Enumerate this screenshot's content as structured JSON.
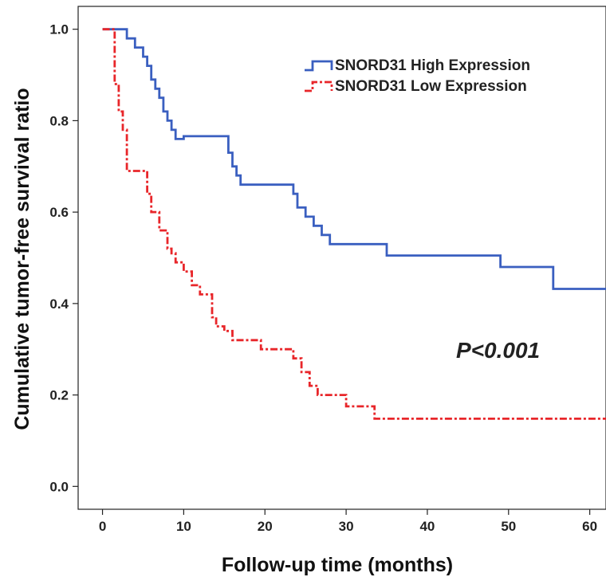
{
  "chart_data": {
    "type": "line",
    "title": "",
    "xlabel": "Follow-up time (months)",
    "ylabel": "Cumulative tumor-free survival ratio",
    "xlim": [
      -3,
      62
    ],
    "ylim": [
      -0.05,
      1.05
    ],
    "x_ticks": [
      "0",
      "10",
      "20",
      "30",
      "40",
      "50",
      "60"
    ],
    "y_ticks": [
      "0.0",
      "0.2",
      "0.4",
      "0.6",
      "0.8",
      "1.0"
    ],
    "x_tick_values": [
      0,
      10,
      20,
      30,
      40,
      50,
      60
    ],
    "y_tick_values": [
      0.0,
      0.2,
      0.4,
      0.6,
      0.8,
      1.0
    ],
    "grid": false,
    "legend_position": "top-right",
    "step": true,
    "annotation": "P<0.001",
    "series": [
      {
        "name": "SNORD31 High Expression",
        "color": "#3a5fc0",
        "dash": "solid",
        "x": [
          0,
          3,
          4,
          5,
          5.5,
          6,
          6.5,
          7,
          7.5,
          8,
          8.5,
          9,
          10,
          15.5,
          16,
          16.5,
          17,
          18,
          23.5,
          24,
          25,
          26,
          27,
          28,
          30,
          35,
          49,
          55.5,
          62
        ],
        "y": [
          1.0,
          0.98,
          0.96,
          0.94,
          0.92,
          0.89,
          0.87,
          0.85,
          0.82,
          0.8,
          0.78,
          0.76,
          0.766,
          0.73,
          0.7,
          0.68,
          0.66,
          0.66,
          0.64,
          0.61,
          0.59,
          0.57,
          0.55,
          0.53,
          0.53,
          0.505,
          0.48,
          0.432,
          0.432
        ]
      },
      {
        "name": "SNORD31 Low Expression",
        "color": "#e8262a",
        "dash": "dashdot",
        "x": [
          0,
          1.5,
          2,
          2.5,
          3,
          5.5,
          6,
          7,
          8,
          8.5,
          9,
          10,
          11,
          12,
          13.5,
          14,
          15,
          16,
          16.5,
          18,
          19.5,
          20.5,
          23.5,
          24.5,
          25.5,
          26.5,
          27.5,
          30,
          33.5,
          62
        ],
        "y": [
          1.0,
          0.88,
          0.82,
          0.78,
          0.69,
          0.64,
          0.6,
          0.56,
          0.52,
          0.51,
          0.49,
          0.47,
          0.44,
          0.42,
          0.37,
          0.35,
          0.34,
          0.32,
          0.32,
          0.32,
          0.3,
          0.3,
          0.28,
          0.25,
          0.22,
          0.2,
          0.2,
          0.175,
          0.148,
          0.148
        ]
      }
    ]
  }
}
